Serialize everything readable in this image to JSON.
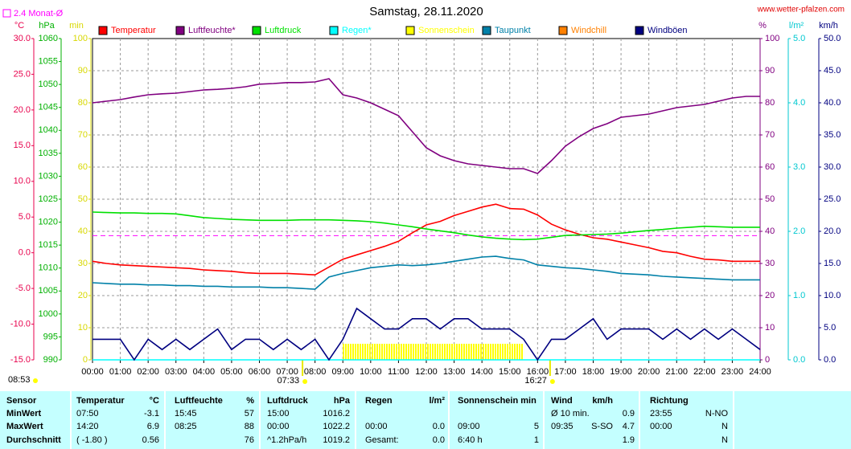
{
  "chart_data": {
    "type": "line",
    "title": "Samstag, 28.11.2020",
    "source": "www.wetter-pfalzen.com",
    "monthly_avg": {
      "label": "2.4 Monat-Ø",
      "value": 2.4,
      "color": "#ff00ff",
      "axis": 0
    },
    "moon": "08:53",
    "xlim": [
      0,
      24
    ],
    "xticks": [
      {
        "value": 0,
        "label": "00:00"
      },
      {
        "value": 1,
        "label": "01:00"
      },
      {
        "value": 2,
        "label": "02:00"
      },
      {
        "value": 3,
        "label": "03:00"
      },
      {
        "value": 4,
        "label": "04:00"
      },
      {
        "value": 5,
        "label": "05:00"
      },
      {
        "value": 6,
        "label": "06:00"
      },
      {
        "value": 7,
        "label": "07:00"
      },
      {
        "value": 8,
        "label": "08:00"
      },
      {
        "value": 9,
        "label": "09:00"
      },
      {
        "value": 10,
        "label": "10:00"
      },
      {
        "value": 11,
        "label": "11:00"
      },
      {
        "value": 12,
        "label": "12:00"
      },
      {
        "value": 13,
        "label": "13:00"
      },
      {
        "value": 14,
        "label": "14:00"
      },
      {
        "value": 15,
        "label": "15:00"
      },
      {
        "value": 16,
        "label": "16:00"
      },
      {
        "value": 17,
        "label": "17:00"
      },
      {
        "value": 18,
        "label": "18:00"
      },
      {
        "value": 19,
        "label": "19:00"
      },
      {
        "value": 20,
        "label": "20:00"
      },
      {
        "value": 21,
        "label": "21:00"
      },
      {
        "value": 22,
        "label": "22:00"
      },
      {
        "value": 23,
        "label": "23:00"
      },
      {
        "value": 24,
        "label": "24:00"
      }
    ],
    "sunrise": {
      "value": 7.55,
      "label": "07:33"
    },
    "sunset": {
      "value": 16.45,
      "label": "16:27"
    },
    "axes": [
      {
        "unit": "°C",
        "color": "#e8004c",
        "lim": [
          -15,
          30
        ],
        "ticks": [
          {
            "value": 30,
            "label": "30.0"
          },
          {
            "value": 25,
            "label": "25.0"
          },
          {
            "value": 20,
            "label": "20.0"
          },
          {
            "value": 15,
            "label": "15.0"
          },
          {
            "value": 10,
            "label": "10.0"
          },
          {
            "value": 5,
            "label": "5.0"
          },
          {
            "value": 0,
            "label": "0.0"
          },
          {
            "value": -5,
            "label": "-5.0"
          },
          {
            "value": -10,
            "label": "-10.0"
          },
          {
            "value": -15,
            "label": "-15.0"
          }
        ]
      },
      {
        "unit": "hPa",
        "color": "#00b000",
        "lim": [
          990,
          1060
        ],
        "ticks": [
          1060,
          1055,
          1050,
          1045,
          1040,
          1035,
          1030,
          1025,
          1020,
          1015,
          1010,
          1005,
          1000,
          995,
          990
        ]
      },
      {
        "unit": "min",
        "color": "#d8d800",
        "lim": [
          0,
          100
        ],
        "ticks": [
          100,
          90,
          80,
          70,
          60,
          50,
          40,
          30,
          20,
          10,
          0
        ],
        "grid": true
      },
      {
        "unit": "%",
        "color": "#800080",
        "lim": [
          0,
          100
        ],
        "ticks": [
          100,
          90,
          80,
          70,
          60,
          50,
          40,
          30,
          20,
          10,
          0
        ]
      },
      {
        "unit": "l/m²",
        "color": "#00c8d0",
        "lim": [
          0,
          5
        ],
        "ticks": [
          {
            "value": 5,
            "label": "5.0"
          },
          {
            "value": 4,
            "label": "4.0"
          },
          {
            "value": 3,
            "label": "3.0"
          },
          {
            "value": 2,
            "label": "2.0"
          },
          {
            "value": 1,
            "label": "1.0"
          },
          {
            "value": 0,
            "label": "0.0"
          }
        ]
      },
      {
        "unit": "km/h",
        "color": "#000080",
        "lim": [
          0,
          50
        ],
        "ticks": [
          {
            "value": 50,
            "label": "50.0"
          },
          {
            "value": 45,
            "label": "45.0"
          },
          {
            "value": 40,
            "label": "40.0"
          },
          {
            "value": 35,
            "label": "35.0"
          },
          {
            "value": 30,
            "label": "30.0"
          },
          {
            "value": 25,
            "label": "25.0"
          },
          {
            "value": 20,
            "label": "20.0"
          },
          {
            "value": 15,
            "label": "15.0"
          },
          {
            "value": 10,
            "label": "10.0"
          },
          {
            "value": 5,
            "label": "5.0"
          },
          {
            "value": 0,
            "label": "0.0"
          }
        ]
      }
    ],
    "x": [
      0,
      0.5,
      1,
      1.5,
      2,
      2.5,
      3,
      3.5,
      4,
      4.5,
      5,
      5.5,
      6,
      6.5,
      7,
      7.5,
      8,
      8.5,
      9,
      9.5,
      10,
      10.5,
      11,
      11.5,
      12,
      12.5,
      13,
      13.5,
      14,
      14.5,
      15,
      15.5,
      16,
      16.5,
      17,
      17.5,
      18,
      18.5,
      19,
      19.5,
      20,
      20.5,
      21,
      21.5,
      22,
      22.5,
      23,
      23.5,
      24
    ],
    "series": [
      {
        "name": "Temperatur",
        "color": "#ff0000",
        "axis": 0,
        "type": "line",
        "values": [
          -1.2,
          -1.5,
          -1.7,
          -1.8,
          -1.9,
          -2.0,
          -2.1,
          -2.2,
          -2.4,
          -2.5,
          -2.6,
          -2.8,
          -2.9,
          -2.9,
          -2.9,
          -3.0,
          -3.1,
          -2.0,
          -0.9,
          -0.3,
          0.3,
          0.9,
          1.6,
          2.8,
          3.9,
          4.4,
          5.2,
          5.8,
          6.4,
          6.8,
          6.2,
          6.1,
          5.3,
          4.0,
          3.2,
          2.6,
          2.1,
          1.9,
          1.5,
          1.1,
          0.7,
          0.2,
          0.0,
          -0.5,
          -0.9,
          -1.0,
          -1.2,
          -1.2,
          -1.2
        ]
      },
      {
        "name": "Luftfeuchte*",
        "color": "#800080",
        "axis": 3,
        "type": "line",
        "values": [
          80,
          80.5,
          81,
          81.8,
          82.5,
          82.8,
          83,
          83.5,
          84,
          84.2,
          84.5,
          85,
          85.8,
          86,
          86.3,
          86.3,
          86.5,
          87.5,
          82.5,
          81.5,
          80,
          78,
          76,
          71,
          66,
          63.5,
          62,
          61,
          60.5,
          60,
          59.5,
          59.5,
          58,
          62,
          66.5,
          69.5,
          72,
          73.5,
          75.5,
          76,
          76.5,
          77.5,
          78.5,
          79,
          79.5,
          80.5,
          81.5,
          82,
          82
        ]
      },
      {
        "name": "Luftdruck",
        "color": "#00e000",
        "axis": 1,
        "type": "line",
        "values": [
          1022.2,
          1022.1,
          1022.0,
          1022.0,
          1021.9,
          1021.9,
          1021.8,
          1021.4,
          1021.0,
          1020.8,
          1020.6,
          1020.5,
          1020.4,
          1020.4,
          1020.4,
          1020.5,
          1020.5,
          1020.5,
          1020.4,
          1020.3,
          1020.1,
          1019.8,
          1019.4,
          1019.0,
          1018.5,
          1018.1,
          1017.7,
          1017.2,
          1016.8,
          1016.5,
          1016.3,
          1016.2,
          1016.3,
          1016.7,
          1017.1,
          1017.2,
          1017.3,
          1017.4,
          1017.6,
          1017.9,
          1018.2,
          1018.4,
          1018.7,
          1018.9,
          1019.1,
          1019.0,
          1018.9,
          1018.9,
          1018.9
        ]
      },
      {
        "name": "Regen*",
        "color": "#00ffff",
        "axis": 4,
        "type": "line",
        "values": [
          0,
          0,
          0,
          0,
          0,
          0,
          0,
          0,
          0,
          0,
          0,
          0,
          0,
          0,
          0,
          0,
          0,
          0,
          0,
          0,
          0,
          0,
          0,
          0,
          0,
          0,
          0,
          0,
          0,
          0,
          0,
          0,
          0,
          0,
          0,
          0,
          0,
          0,
          0,
          0,
          0,
          0,
          0,
          0,
          0,
          0,
          0,
          0,
          0
        ]
      },
      {
        "name": "Sonnenschein",
        "color": "#ffff00",
        "axis": 2,
        "type": "bar",
        "values": [
          0,
          0,
          0,
          0,
          0,
          0,
          0,
          0,
          0,
          0,
          0,
          0,
          0,
          0,
          0,
          0,
          0,
          0,
          5,
          5,
          5,
          5,
          5,
          5,
          5,
          5,
          5,
          5,
          5,
          5,
          5,
          0,
          0,
          0,
          0,
          0,
          0,
          0,
          0,
          0,
          0,
          0,
          0,
          0,
          0,
          0,
          0,
          0,
          0
        ]
      },
      {
        "name": "Taupunkt",
        "color": "#0080a8",
        "axis": 0,
        "type": "line",
        "values": [
          -4.2,
          -4.3,
          -4.4,
          -4.4,
          -4.5,
          -4.5,
          -4.6,
          -4.6,
          -4.7,
          -4.7,
          -4.8,
          -4.8,
          -4.8,
          -4.9,
          -4.9,
          -5.0,
          -5.1,
          -3.4,
          -2.9,
          -2.5,
          -2.1,
          -1.9,
          -1.7,
          -1.8,
          -1.7,
          -1.5,
          -1.2,
          -0.9,
          -0.6,
          -0.5,
          -0.8,
          -1.0,
          -1.7,
          -1.9,
          -2.1,
          -2.2,
          -2.4,
          -2.6,
          -2.9,
          -3.0,
          -3.1,
          -3.3,
          -3.4,
          -3.5,
          -3.6,
          -3.7,
          -3.8,
          -3.8,
          -3.8
        ]
      },
      {
        "name": "Windchill",
        "color": "#ff8000",
        "axis": 0,
        "type": "line",
        "values": [
          null,
          null,
          null,
          null,
          null,
          null,
          null,
          null,
          null,
          null,
          null,
          null,
          null,
          null,
          null,
          null,
          null,
          null,
          null,
          null,
          null,
          null,
          null,
          null,
          null,
          null,
          null,
          null,
          null,
          null,
          null,
          null,
          null,
          null,
          null,
          null,
          null,
          null,
          null,
          null,
          null,
          null,
          null,
          null,
          null,
          null,
          null,
          null,
          null
        ]
      },
      {
        "name": "Windböen",
        "color": "#000080",
        "axis": 5,
        "type": "line",
        "values": [
          3.2,
          3.2,
          3.2,
          0,
          3.2,
          1.6,
          3.2,
          1.6,
          3.2,
          4.8,
          1.6,
          3.2,
          3.2,
          1.6,
          3.2,
          1.6,
          3.2,
          0,
          3.2,
          8,
          6.4,
          4.8,
          4.8,
          6.4,
          6.4,
          4.8,
          6.4,
          6.4,
          4.8,
          4.8,
          4.8,
          3.2,
          0,
          3.2,
          3.2,
          4.8,
          6.4,
          3.2,
          4.8,
          4.8,
          4.8,
          3.2,
          4.8,
          3.2,
          4.8,
          3.2,
          4.8,
          3.2,
          1.6
        ]
      }
    ]
  },
  "table": {
    "header": [
      [
        "Sensor"
      ],
      [
        "Temperatur",
        "°C"
      ],
      [
        "Luftfeuchte",
        "%"
      ],
      [
        "Luftdruck",
        "hPa"
      ],
      [
        "Regen",
        "l/m²"
      ],
      [
        "Sonnenschein min"
      ],
      [
        "Wind",
        "km/h"
      ],
      [
        "Richtung"
      ]
    ],
    "rows": [
      {
        "label": "MinWert",
        "cells": [
          [
            "07:50",
            "-3.1"
          ],
          [
            "15:45",
            "57"
          ],
          [
            "15:00",
            "1016.2"
          ],
          [
            null,
            null
          ],
          [
            null,
            null
          ],
          [
            "Ø 10 min.",
            null,
            "0.9"
          ],
          [
            "23:55",
            "N-NO"
          ]
        ]
      },
      {
        "label": "MaxWert",
        "cells": [
          [
            "14:20",
            "6.9"
          ],
          [
            "08:25",
            "88"
          ],
          [
            "00:00",
            "1022.2"
          ],
          [
            "00:00",
            "0.0"
          ],
          [
            "09:00",
            "5"
          ],
          [
            "09:35",
            "S-SO",
            "4.7"
          ],
          [
            "00:00",
            "N"
          ]
        ]
      },
      {
        "label": "Durchschnitt",
        "cells": [
          [
            "( -1.80 )",
            "0.56"
          ],
          [
            null,
            "76"
          ],
          [
            "^1.2hPa/h",
            "1019.2"
          ],
          [
            "Gesamt:",
            "0.0"
          ],
          [
            "6:40 h",
            "1"
          ],
          [
            null,
            null,
            "1.9"
          ],
          [
            null,
            "N"
          ]
        ]
      }
    ]
  }
}
